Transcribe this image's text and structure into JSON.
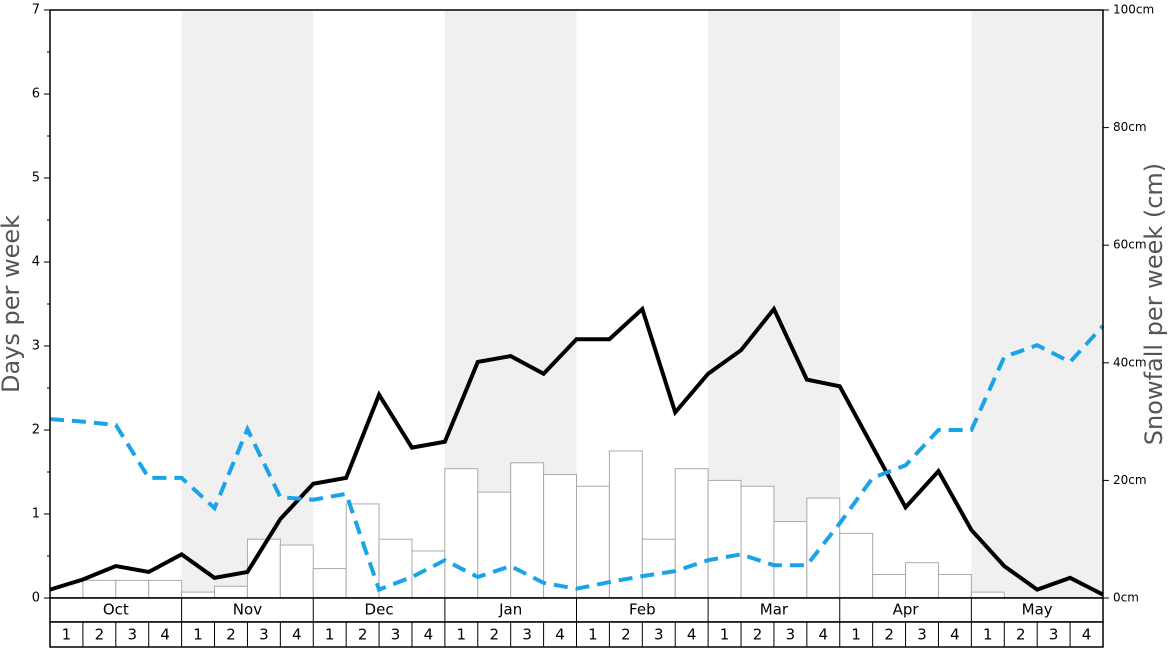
{
  "chart_data": {
    "type": "snow-history",
    "y_label": "Days per week",
    "y2_label": "Snowfall per week (cm)",
    "months": [
      "Oct",
      "Nov",
      "Dec",
      "Jan",
      "Feb",
      "Mar",
      "Apr",
      "May"
    ],
    "weeks": [
      "1",
      "2",
      "3",
      "4",
      "1",
      "2",
      "3",
      "4",
      "1",
      "2",
      "3",
      "4",
      "1",
      "2",
      "3",
      "4",
      "1",
      "2",
      "3",
      "4",
      "1",
      "2",
      "3",
      "4",
      "1",
      "2",
      "3",
      "4",
      "1",
      "2",
      "3",
      "4"
    ],
    "shade_color": "#f0f0f0",
    "ylim": [
      0,
      7
    ],
    "yticks": [
      0,
      1,
      2,
      3,
      4,
      5,
      6,
      7
    ],
    "yminorticks": [
      0.5,
      1.5,
      2.5,
      3.5,
      4.5,
      5.5,
      6.5
    ],
    "y2lim": [
      0,
      100
    ],
    "y2ticks": [
      {
        "value": 0,
        "label": "0cm"
      },
      {
        "value": 20,
        "label": "20cm"
      },
      {
        "value": 40,
        "label": "40cm"
      },
      {
        "value": 60,
        "label": "60cm"
      },
      {
        "value": 80,
        "label": "80cm"
      },
      {
        "value": 100,
        "label": "100cm"
      }
    ],
    "xlim": [
      0,
      32
    ],
    "x": [
      0,
      1,
      2,
      3,
      4,
      5,
      6,
      7,
      8,
      9,
      10,
      11,
      12,
      13,
      14,
      15,
      16,
      17,
      18,
      19,
      20,
      21,
      22,
      23,
      24,
      25,
      26,
      27,
      28,
      29,
      30,
      31,
      32
    ],
    "bars": {
      "axis": "y2",
      "color": "#ffffff",
      "edge": "#aaaaaa",
      "values": [
        0,
        3,
        3,
        3,
        1,
        2,
        10,
        9,
        5,
        16,
        10,
        8,
        22,
        18,
        23,
        21,
        19,
        25,
        10,
        22,
        20,
        19,
        13,
        17,
        11,
        4,
        6,
        4,
        1,
        0,
        0,
        0
      ]
    },
    "series": [
      {
        "color": "#000000",
        "dashed": false,
        "values": [
          0.1,
          0.22,
          0.38,
          0.31,
          0.52,
          0.24,
          0.31,
          0.94,
          1.36,
          1.43,
          2.42,
          1.79,
          1.86,
          2.81,
          2.88,
          2.67,
          3.08,
          3.08,
          3.44,
          2.21,
          2.67,
          2.95,
          3.44,
          2.6,
          2.52,
          1.8,
          1.08,
          1.51,
          0.81,
          0.38,
          0.1,
          0.24,
          0.04
        ]
      },
      {
        "color": "#1aa3e8",
        "dashed": true,
        "values": [
          2.13,
          2.1,
          2.06,
          1.43,
          1.43,
          1.07,
          2.01,
          1.2,
          1.17,
          1.24,
          0.1,
          0.25,
          0.45,
          0.25,
          0.38,
          0.18,
          0.11,
          0.19,
          0.26,
          0.32,
          0.45,
          0.52,
          0.39,
          0.39,
          0.89,
          1.43,
          1.58,
          2.0,
          2.0,
          2.87,
          3.01,
          2.81,
          3.24
        ]
      }
    ]
  }
}
